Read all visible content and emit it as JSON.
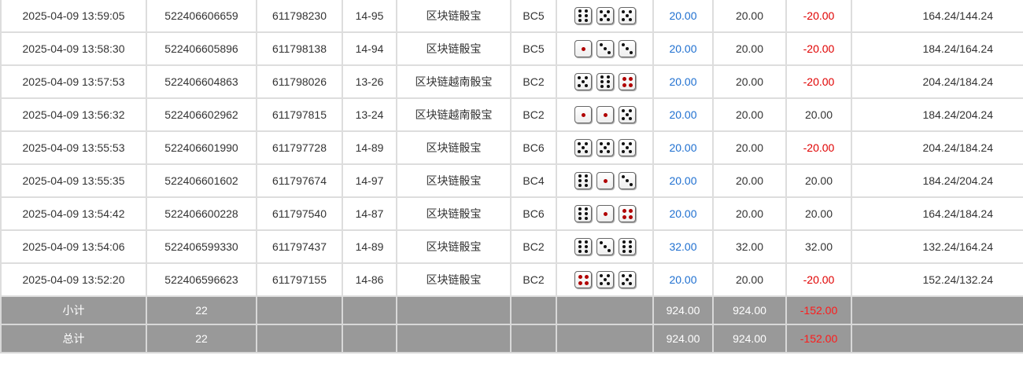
{
  "colors": {
    "link_blue": "#1e6fd0",
    "negative_red": "#e00000",
    "footer_bg": "#999999"
  },
  "rows": [
    {
      "time": "2025-04-09 13:59:05",
      "order": "522406606659",
      "issue": "611798230",
      "table": "14-95",
      "game": "区块链骰宝",
      "bet": "BC5",
      "dice": [
        6,
        5,
        5
      ],
      "amount": "20.00",
      "valid": "20.00",
      "win": "-20.00",
      "balance": "164.24/144.24"
    },
    {
      "time": "2025-04-09 13:58:30",
      "order": "522406605896",
      "issue": "611798138",
      "table": "14-94",
      "game": "区块链骰宝",
      "bet": "BC5",
      "dice": [
        1,
        3,
        3
      ],
      "amount": "20.00",
      "valid": "20.00",
      "win": "-20.00",
      "balance": "184.24/164.24"
    },
    {
      "time": "2025-04-09 13:57:53",
      "order": "522406604863",
      "issue": "611798026",
      "table": "13-26",
      "game": "区块链越南骰宝",
      "bet": "BC2",
      "dice": [
        5,
        6,
        4
      ],
      "amount": "20.00",
      "valid": "20.00",
      "win": "-20.00",
      "balance": "204.24/184.24"
    },
    {
      "time": "2025-04-09 13:56:32",
      "order": "522406602962",
      "issue": "611797815",
      "table": "13-24",
      "game": "区块链越南骰宝",
      "bet": "BC2",
      "dice": [
        1,
        1,
        5
      ],
      "amount": "20.00",
      "valid": "20.00",
      "win": "20.00",
      "balance": "184.24/204.24"
    },
    {
      "time": "2025-04-09 13:55:53",
      "order": "522406601990",
      "issue": "611797728",
      "table": "14-89",
      "game": "区块链骰宝",
      "bet": "BC6",
      "dice": [
        5,
        5,
        5
      ],
      "amount": "20.00",
      "valid": "20.00",
      "win": "-20.00",
      "balance": "204.24/184.24"
    },
    {
      "time": "2025-04-09 13:55:35",
      "order": "522406601602",
      "issue": "611797674",
      "table": "14-97",
      "game": "区块链骰宝",
      "bet": "BC4",
      "dice": [
        6,
        1,
        3
      ],
      "amount": "20.00",
      "valid": "20.00",
      "win": "20.00",
      "balance": "184.24/204.24"
    },
    {
      "time": "2025-04-09 13:54:42",
      "order": "522406600228",
      "issue": "611797540",
      "table": "14-87",
      "game": "区块链骰宝",
      "bet": "BC6",
      "dice": [
        6,
        1,
        4
      ],
      "amount": "20.00",
      "valid": "20.00",
      "win": "20.00",
      "balance": "164.24/184.24"
    },
    {
      "time": "2025-04-09 13:54:06",
      "order": "522406599330",
      "issue": "611797437",
      "table": "14-89",
      "game": "区块链骰宝",
      "bet": "BC2",
      "dice": [
        6,
        3,
        6
      ],
      "amount": "32.00",
      "valid": "32.00",
      "win": "32.00",
      "balance": "132.24/164.24"
    },
    {
      "time": "2025-04-09 13:52:20",
      "order": "522406596623",
      "issue": "611797155",
      "table": "14-86",
      "game": "区块链骰宝",
      "bet": "BC2",
      "dice": [
        4,
        5,
        5
      ],
      "amount": "20.00",
      "valid": "20.00",
      "win": "-20.00",
      "balance": "152.24/132.24"
    }
  ],
  "subtotal": {
    "label": "小计",
    "count": "22",
    "amount": "924.00",
    "valid": "924.00",
    "win": "-152.00"
  },
  "total": {
    "label": "总计",
    "count": "22",
    "amount": "924.00",
    "valid": "924.00",
    "win": "-152.00"
  }
}
